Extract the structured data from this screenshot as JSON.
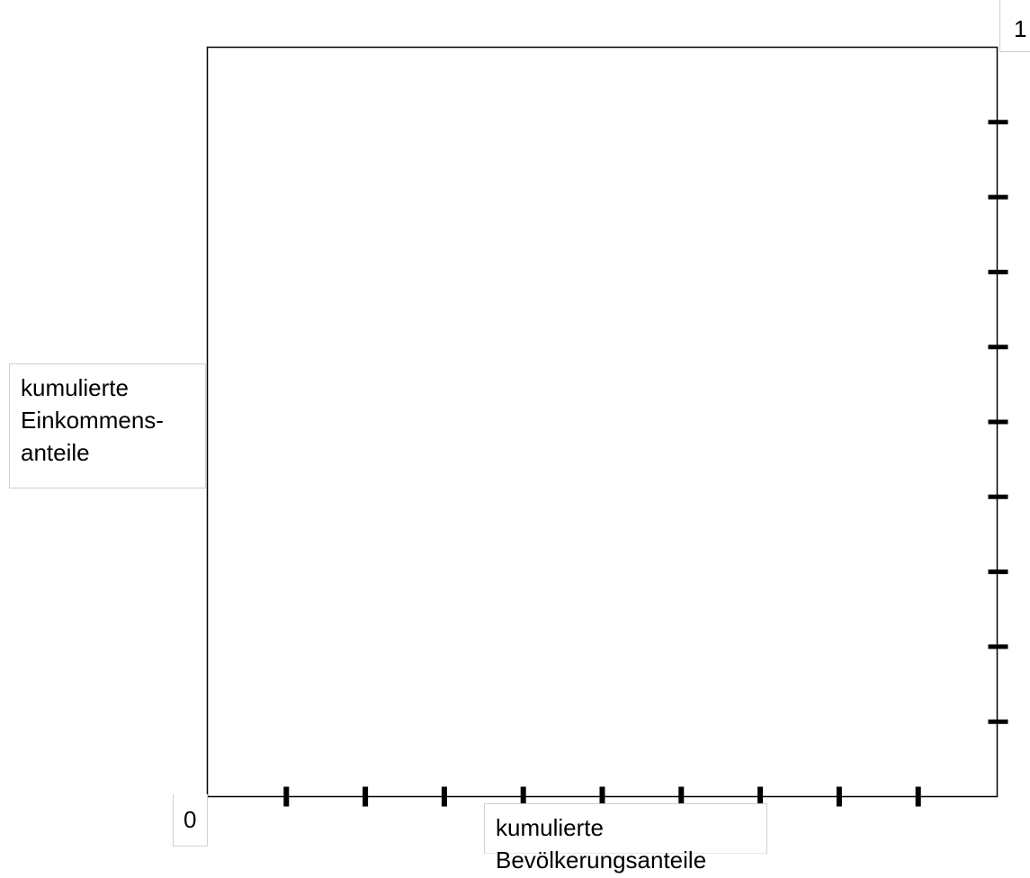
{
  "chart_data": {
    "type": "line",
    "title": "",
    "xlabel_lines": [
      "kumulierte",
      "Bevölkerungsanteile"
    ],
    "ylabel_lines": [
      "kumulierte",
      "Einkommens-",
      "anteile"
    ],
    "origin_label": "0",
    "max_label": "1",
    "xlim": [
      0,
      1
    ],
    "ylim": [
      0,
      1
    ],
    "x_ticks": [
      0.1,
      0.2,
      0.3,
      0.4,
      0.5,
      0.6,
      0.7,
      0.8,
      0.9
    ],
    "y_ticks": [
      0.1,
      0.2,
      0.3,
      0.4,
      0.5,
      0.6,
      0.7,
      0.8,
      0.9
    ],
    "grid": false,
    "series": []
  }
}
